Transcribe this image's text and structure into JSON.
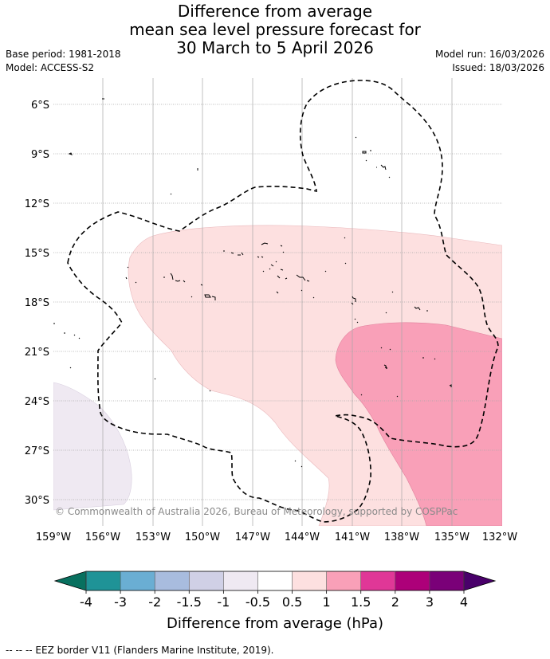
{
  "title": {
    "line1": "Difference from average",
    "line2": "mean sea level pressure forecast for",
    "line3": "30 March to 5 April 2026"
  },
  "meta": {
    "base_period": "Base period: 1981-2018",
    "model": "Model: ACCESS-S2",
    "model_run": "Model run: 16/03/2026",
    "issued": "Issued: 18/03/2026"
  },
  "map": {
    "lat_labels": [
      "6°S",
      "9°S",
      "12°S",
      "15°S",
      "18°S",
      "21°S",
      "24°S",
      "27°S",
      "30°S"
    ],
    "lon_labels": [
      "159°W",
      "156°W",
      "153°W",
      "150°W",
      "147°W",
      "144°W",
      "141°W",
      "138°W",
      "135°W",
      "132°W"
    ],
    "copyright": "© Commonwealth of Australia 2026, Bureau of Meteorology, supported by COSPPac"
  },
  "colorbar": {
    "ticks": [
      "-4",
      "-3",
      "-2",
      "-1.5",
      "-1",
      "-0.5",
      "0.5",
      "1",
      "1.5",
      "2",
      "3",
      "4"
    ],
    "colors": [
      "#1f9397",
      "#6aaed3",
      "#a8bcde",
      "#d0d0e6",
      "#efe9f2",
      "#ffffff",
      "#fde0e0",
      "#f9a0b8",
      "#e03797",
      "#ad0079",
      "#7a0078"
    ],
    "under_color": "#08705f",
    "over_color": "#49006a",
    "label": "Difference from average (hPa)"
  },
  "footer": "--  --  -- EEZ border V11 (Flanders Marine Institute, 2019)."
}
